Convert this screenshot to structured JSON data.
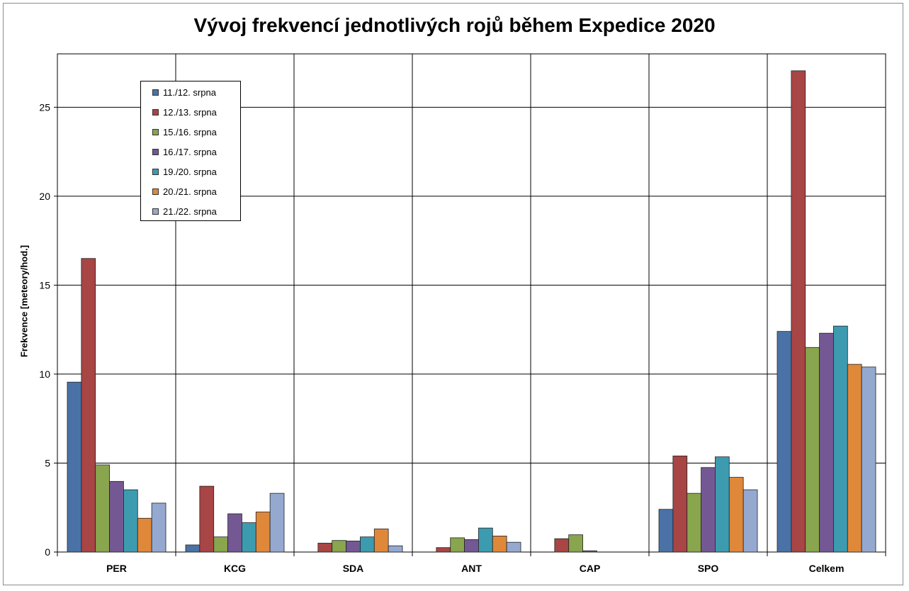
{
  "chart_data": {
    "type": "bar",
    "title": "Vývoj frekvencí jednotlivých rojů během Expedice 2020",
    "xlabel": "",
    "ylabel": "Frekvence [meteory/hod.]",
    "ylim": [
      0,
      28
    ],
    "yticks": [
      0,
      5,
      10,
      15,
      20,
      25
    ],
    "grid": true,
    "legend_position": "upper-left",
    "categories": [
      "PER",
      "KCG",
      "SDA",
      "ANT",
      "CAP",
      "SPO",
      "Celkem"
    ],
    "series": [
      {
        "name": "11./12. srpna",
        "color": "#4a72a6",
        "values": [
          9.55,
          0.4,
          0,
          0,
          0,
          2.4,
          12.4
        ]
      },
      {
        "name": "12./13. srpna",
        "color": "#a84545",
        "values": [
          16.5,
          3.7,
          0.5,
          0.25,
          0.75,
          5.4,
          27.05
        ]
      },
      {
        "name": "15./16. srpna",
        "color": "#89a54e",
        "values": [
          4.9,
          0.85,
          0.65,
          0.8,
          0.97,
          3.3,
          11.5
        ]
      },
      {
        "name": "16./17. srpna",
        "color": "#745893",
        "values": [
          3.97,
          2.15,
          0.62,
          0.7,
          0.07,
          4.75,
          12.3
        ]
      },
      {
        "name": "19./20. srpna",
        "color": "#3d9bb0",
        "values": [
          3.5,
          1.65,
          0.85,
          1.35,
          0,
          5.35,
          12.7
        ]
      },
      {
        "name": "20./21. srpna",
        "color": "#e0883a",
        "values": [
          1.9,
          2.25,
          1.3,
          0.9,
          0,
          4.2,
          10.55
        ]
      },
      {
        "name": "21./22. srpna",
        "color": "#95a9d0",
        "values": [
          2.75,
          3.3,
          0.35,
          0.55,
          0,
          3.5,
          10.4
        ]
      }
    ]
  }
}
